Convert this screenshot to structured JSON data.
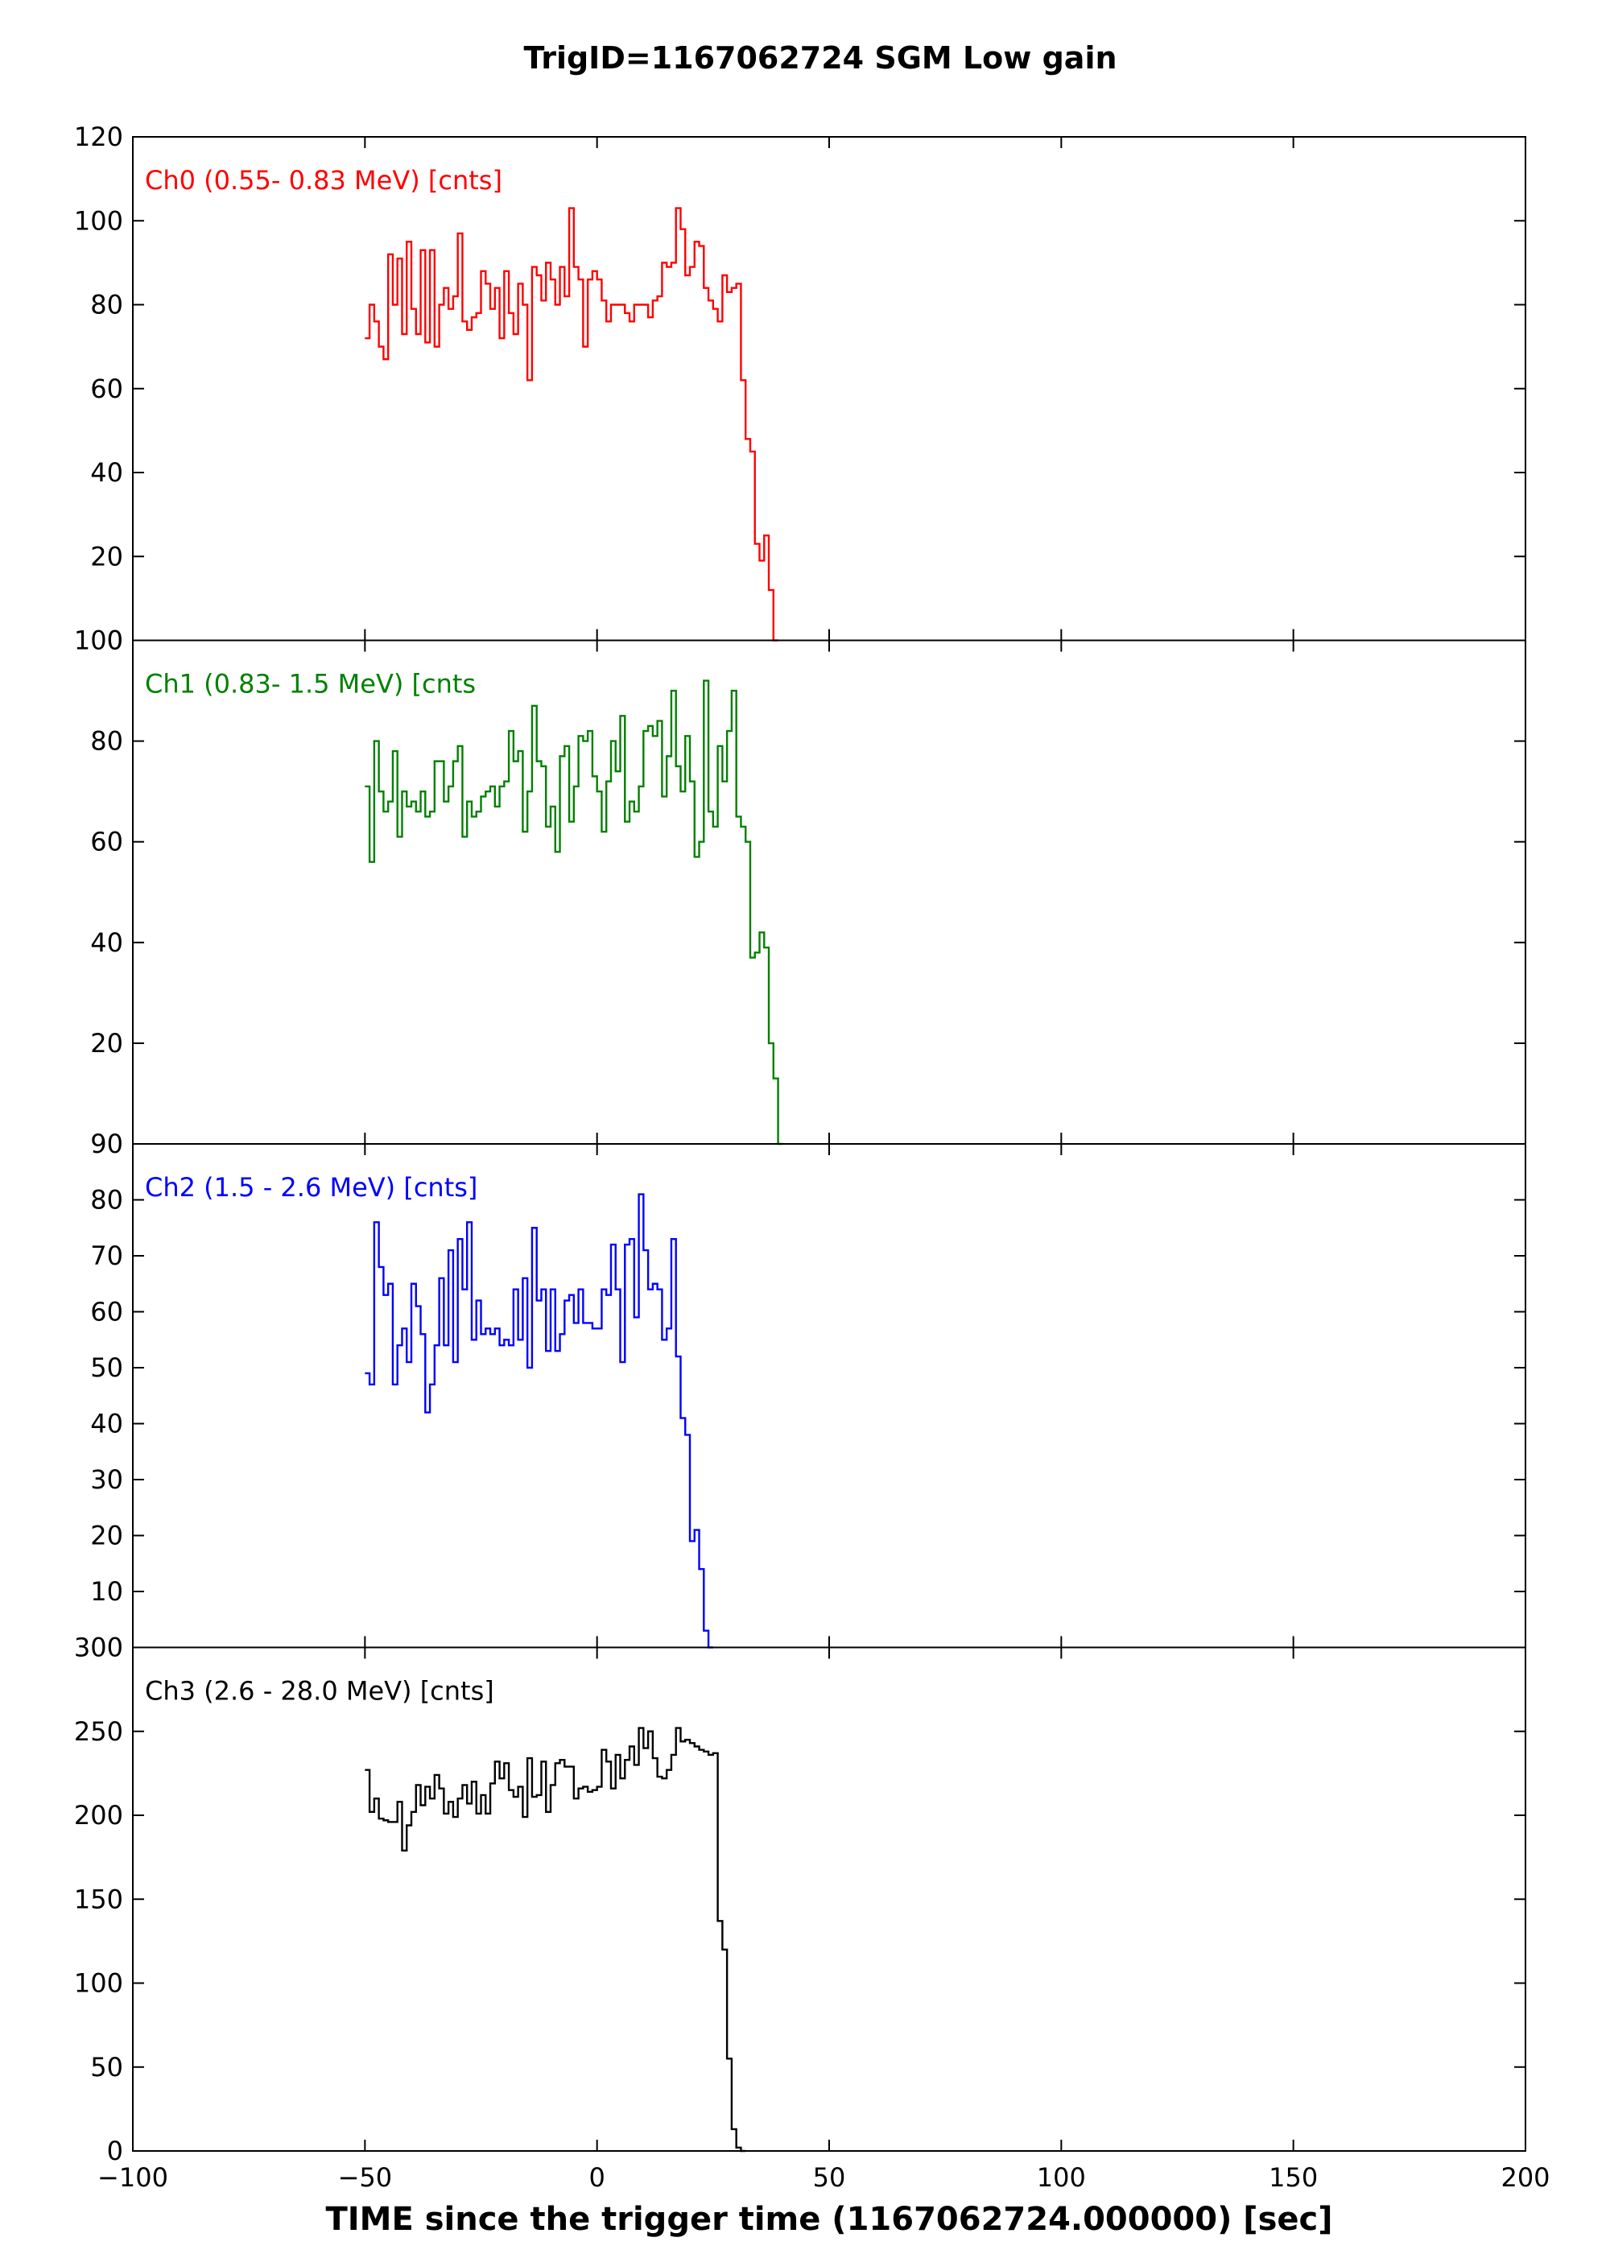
{
  "figure": {
    "title": "TrigID=1167062724 SGM Low gain",
    "xlabel": "TIME since the trigger time (1167062724.000000) [sec]"
  },
  "chart_data": [
    {
      "type": "line",
      "step": true,
      "label": "Ch0 (0.55- 0.83 MeV) [cnts]",
      "color": "#ff0000",
      "xlim": [
        -100,
        200
      ],
      "ylim": [
        0,
        120
      ],
      "yticks": [
        0,
        20,
        40,
        60,
        80,
        100,
        120
      ],
      "x_start": -50,
      "bin_width": 1,
      "values": [
        72,
        80,
        76,
        70,
        67,
        92,
        80,
        91,
        73,
        95,
        79,
        73,
        93,
        71,
        93,
        70,
        80,
        84,
        79,
        82,
        97,
        76,
        74,
        77,
        78,
        88,
        85,
        79,
        84,
        72,
        88,
        78,
        73,
        85,
        80,
        62,
        89,
        87,
        81,
        90,
        86,
        80,
        89,
        82,
        103,
        89,
        86,
        70,
        86,
        88,
        86,
        81,
        76,
        80,
        80,
        80,
        78,
        76,
        80,
        80,
        80,
        77,
        81,
        82,
        90,
        89,
        90,
        103,
        98,
        87,
        89,
        95,
        94,
        84,
        81,
        79,
        76,
        87,
        83,
        84,
        85,
        62,
        48,
        45,
        23,
        19,
        25,
        12,
        0
      ]
    },
    {
      "type": "line",
      "step": true,
      "label": "Ch1 (0.83-  1.5 MeV) [cnts",
      "color": "#008000",
      "xlim": [
        -100,
        200
      ],
      "ylim": [
        0,
        100
      ],
      "yticks": [
        20,
        40,
        60,
        80,
        100
      ],
      "x_start": -50,
      "bin_width": 1,
      "values": [
        71,
        56,
        80,
        70,
        66,
        68,
        78,
        61,
        70,
        67,
        68,
        66,
        70,
        65,
        66,
        76,
        76,
        68,
        71,
        76,
        79,
        61,
        68,
        65,
        66,
        69,
        70,
        71,
        67,
        71,
        72,
        82,
        76,
        78,
        62,
        70,
        87,
        76,
        75,
        63,
        67,
        58,
        77,
        79,
        64,
        71,
        81,
        80,
        82,
        73,
        70,
        62,
        72,
        80,
        74,
        85,
        64,
        68,
        66,
        71,
        82,
        83,
        81,
        84,
        69,
        77,
        90,
        75,
        70,
        81,
        72,
        57,
        60,
        92,
        66,
        63,
        79,
        72,
        82,
        90,
        65,
        63,
        60,
        37,
        38,
        42,
        39,
        20,
        13,
        0
      ]
    },
    {
      "type": "line",
      "step": true,
      "label": "Ch2 (1.5 -  2.6 MeV) [cnts]",
      "color": "#0000ff",
      "xlim": [
        -100,
        200
      ],
      "ylim": [
        0,
        90
      ],
      "yticks": [
        10,
        20,
        30,
        40,
        50,
        60,
        70,
        80,
        90
      ],
      "x_start": -50,
      "bin_width": 1,
      "values": [
        49,
        47,
        76,
        68,
        63,
        65,
        47,
        54,
        57,
        51,
        65,
        61,
        56,
        42,
        47,
        54,
        66,
        54,
        71,
        51,
        73,
        64,
        76,
        55,
        62,
        56,
        57,
        56,
        57,
        54,
        55,
        54,
        64,
        55,
        66,
        50,
        75,
        62,
        64,
        53,
        64,
        53,
        56,
        62,
        63,
        58,
        64,
        58,
        58,
        57,
        57,
        64,
        63,
        72,
        64,
        51,
        72,
        73,
        59,
        81,
        71,
        64,
        65,
        64,
        55,
        57,
        73,
        52,
        41,
        38,
        19,
        21,
        14,
        3,
        0
      ]
    },
    {
      "type": "line",
      "step": true,
      "label": "Ch3 (2.6 - 28.0 MeV) [cnts]",
      "color": "#000000",
      "xlim": [
        -100,
        200
      ],
      "ylim": [
        0,
        300
      ],
      "yticks": [
        0,
        50,
        100,
        150,
        200,
        250,
        300
      ],
      "x_start": -50,
      "bin_width": 1,
      "values": [
        227,
        202,
        210,
        198,
        197,
        196,
        196,
        208,
        179,
        194,
        202,
        218,
        206,
        217,
        210,
        224,
        216,
        201,
        208,
        199,
        210,
        218,
        207,
        220,
        201,
        212,
        201,
        219,
        232,
        222,
        231,
        215,
        211,
        217,
        199,
        234,
        211,
        212,
        232,
        202,
        218,
        231,
        233,
        229,
        229,
        210,
        216,
        217,
        214,
        215,
        217,
        239,
        232,
        216,
        236,
        222,
        233,
        241,
        230,
        252,
        240,
        250,
        234,
        223,
        222,
        227,
        236,
        252,
        244,
        245,
        243,
        241,
        239,
        238,
        236,
        237,
        137,
        120,
        55,
        13,
        2,
        0
      ]
    }
  ]
}
